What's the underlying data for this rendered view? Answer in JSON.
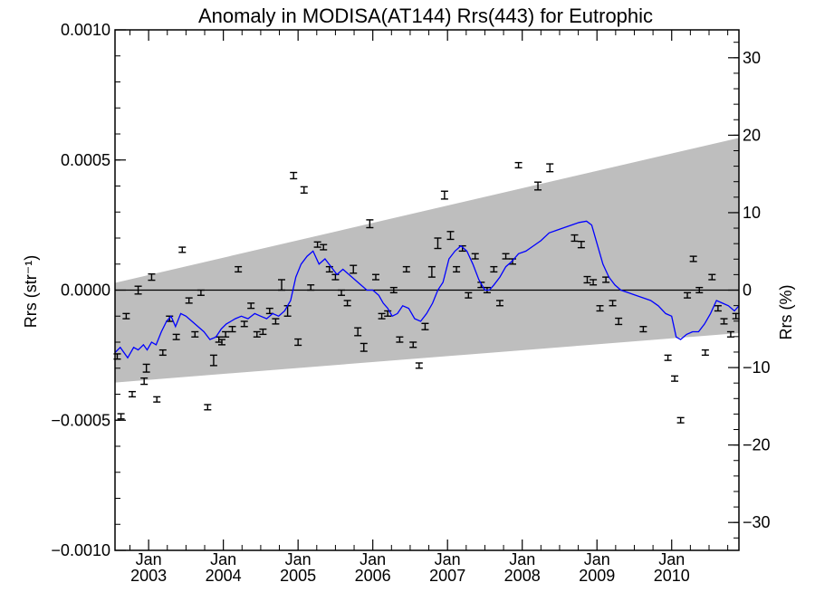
{
  "chart_data": {
    "type": "scatter",
    "title": "Anomaly in MODISA(AT144) Rrs(443) for Eutrophic",
    "ylabel_left": "Rrs (str⁻¹)",
    "ylabel_right": "Rrs (%)",
    "xlabel": "",
    "xlim": [
      2002.55,
      2010.9
    ],
    "ylim_left": [
      -0.001,
      0.001
    ],
    "ylim_right": [
      -33.6,
      33.6
    ],
    "left_ticks": [
      "0.0010",
      "0.0005",
      "0.0000",
      "−0.0005",
      "−0.0010"
    ],
    "left_tick_values": [
      0.001,
      0.0005,
      0.0,
      -0.0005,
      -0.001
    ],
    "right_ticks": [
      "30",
      "20",
      "10",
      "0",
      "−10",
      "−20",
      "−30"
    ],
    "right_tick_values": [
      30,
      20,
      10,
      0,
      -10,
      -20,
      -30
    ],
    "x_tick_month": "Jan",
    "x_tick_years": [
      "2003",
      "2004",
      "2005",
      "2006",
      "2007",
      "2008",
      "2009",
      "2010"
    ],
    "x_tick_values": [
      2003,
      2004,
      2005,
      2006,
      2007,
      2008,
      2009,
      2010
    ],
    "grid": false,
    "legend": "none",
    "zero_line": 0.0,
    "band": {
      "x": [
        2002.55,
        2010.9
      ],
      "upper": [
        2.8e-05,
        0.000585
      ],
      "lower": [
        -0.000355,
        -0.000165
      ],
      "color": "#bebebe"
    },
    "series": [
      {
        "type": "errorbar",
        "color": "#000000",
        "x": [
          2002.58,
          2002.63,
          2002.7,
          2002.78,
          2002.86,
          2002.94,
          2002.97,
          2003.04,
          2003.11,
          2003.19,
          2003.28,
          2003.37,
          2003.45,
          2003.54,
          2003.62,
          2003.7,
          2003.79,
          2003.87,
          2003.94,
          2003.98,
          2004.03,
          2004.12,
          2004.2,
          2004.28,
          2004.37,
          2004.45,
          2004.53,
          2004.62,
          2004.7,
          2004.78,
          2004.86,
          2004.94,
          2005.0,
          2005.08,
          2005.17,
          2005.26,
          2005.34,
          2005.42,
          2005.5,
          2005.58,
          2005.66,
          2005.74,
          2005.8,
          2005.88,
          2005.96,
          2006.04,
          2006.12,
          2006.2,
          2006.28,
          2006.36,
          2006.45,
          2006.54,
          2006.62,
          2006.7,
          2006.79,
          2006.87,
          2006.96,
          2007.04,
          2007.12,
          2007.2,
          2007.28,
          2007.37,
          2007.45,
          2007.53,
          2007.62,
          2007.7,
          2007.78,
          2007.87,
          2007.95,
          2008.21,
          2008.37,
          2008.7,
          2008.79,
          2008.87,
          2008.95,
          2009.04,
          2009.12,
          2009.21,
          2009.29,
          2009.62,
          2009.95,
          2010.04,
          2010.12,
          2010.21,
          2010.29,
          2010.37,
          2010.45,
          2010.54,
          2010.62,
          2010.7,
          2010.79,
          2010.86
        ],
        "y": [
          -0.000255,
          -0.000485,
          -0.0001,
          -0.0004,
          0.0,
          -0.00035,
          -0.0003,
          5e-05,
          -0.00042,
          -0.00024,
          -0.00011,
          -0.00018,
          0.000155,
          -4e-05,
          -0.00017,
          -1e-05,
          -0.00045,
          -0.00027,
          -0.00019,
          -0.0002,
          -0.00017,
          -0.00015,
          8e-05,
          -0.00013,
          -6e-05,
          -0.00017,
          -0.00016,
          -8e-05,
          -0.00012,
          2e-05,
          -8e-05,
          0.00044,
          -0.0002,
          0.000385,
          1e-05,
          0.000175,
          0.000165,
          8e-05,
          5e-05,
          -1e-05,
          -5e-05,
          8e-05,
          -0.00016,
          -0.00022,
          0.000255,
          5e-05,
          -0.0001,
          -9e-05,
          0.0,
          -0.00019,
          8e-05,
          -0.00021,
          -0.00029,
          -0.00014,
          7e-05,
          0.00018,
          0.000365,
          0.00021,
          8e-05,
          0.00016,
          -2e-05,
          0.00013,
          2e-05,
          0.0,
          8e-05,
          -5e-05,
          0.00013,
          0.00011,
          0.00048,
          0.0004,
          0.00047,
          0.0002,
          0.000175,
          4e-05,
          3e-05,
          -7e-05,
          4e-05,
          -5e-05,
          -0.00012,
          -0.00015,
          -0.00026,
          -0.00034,
          -0.0005,
          -2e-05,
          0.00012,
          0.0,
          -0.00024,
          5e-05,
          -7e-05,
          -0.00012,
          -0.00017,
          -0.0001
        ],
        "err": [
          1e-05,
          1e-05,
          1e-05,
          1e-05,
          1.5e-05,
          1.2e-05,
          1.5e-05,
          1.2e-05,
          1e-05,
          1e-05,
          1e-05,
          1e-05,
          1e-05,
          1e-05,
          1e-05,
          1e-05,
          1e-05,
          2e-05,
          1e-05,
          1e-05,
          1e-05,
          1e-05,
          1e-05,
          1e-05,
          1e-05,
          1e-05,
          1e-05,
          1e-05,
          1e-05,
          2e-05,
          2e-05,
          1.2e-05,
          1.2e-05,
          1.2e-05,
          1e-05,
          1e-05,
          1e-05,
          1e-05,
          1e-05,
          1e-05,
          1e-05,
          1.5e-05,
          1.5e-05,
          1.5e-05,
          1.5e-05,
          1e-05,
          1e-05,
          1e-05,
          1e-05,
          1e-05,
          1e-05,
          1e-05,
          1e-05,
          1.2e-05,
          2e-05,
          2e-05,
          1.5e-05,
          1.5e-05,
          1e-05,
          1e-05,
          1e-05,
          1e-05,
          1e-05,
          1e-05,
          1e-05,
          1e-05,
          1e-05,
          1e-05,
          1e-05,
          1.5e-05,
          1.5e-05,
          1.2e-05,
          1.2e-05,
          1.2e-05,
          1e-05,
          1e-05,
          1e-05,
          1e-05,
          1.2e-05,
          1e-05,
          1e-05,
          1e-05,
          1e-05,
          1e-05,
          1e-05,
          1e-05,
          1e-05,
          1e-05,
          1e-05,
          1e-05,
          1e-05,
          1e-05
        ]
      },
      {
        "type": "line",
        "color": "#0000ff",
        "x": [
          2002.55,
          2002.62,
          2002.72,
          2002.8,
          2002.86,
          2002.93,
          2002.98,
          2003.04,
          2003.1,
          2003.17,
          2003.24,
          2003.3,
          2003.36,
          2003.43,
          2003.5,
          2003.58,
          2003.66,
          2003.74,
          2003.82,
          2003.9,
          2003.97,
          2004.04,
          2004.1,
          2004.16,
          2004.24,
          2004.33,
          2004.42,
          2004.5,
          2004.58,
          2004.66,
          2004.74,
          2004.82,
          2004.9,
          2004.97,
          2005.04,
          2005.12,
          2005.2,
          2005.28,
          2005.36,
          2005.44,
          2005.52,
          2005.6,
          2005.68,
          2005.76,
          2005.84,
          2005.92,
          2006.0,
          2006.08,
          2006.14,
          2006.2,
          2006.26,
          2006.33,
          2006.4,
          2006.48,
          2006.56,
          2006.64,
          2006.72,
          2006.8,
          2006.87,
          2006.94,
          2007.02,
          2007.1,
          2007.18,
          2007.26,
          2007.34,
          2007.42,
          2007.5,
          2007.56,
          2007.62,
          2007.7,
          2007.78,
          2007.86,
          2007.95,
          2008.05,
          2008.15,
          2008.25,
          2008.36,
          2008.46,
          2008.56,
          2008.66,
          2008.76,
          2008.86,
          2008.93,
          2009.0,
          2009.08,
          2009.16,
          2009.24,
          2009.32,
          2009.42,
          2009.52,
          2009.62,
          2009.72,
          2009.82,
          2009.92,
          2010.0,
          2010.06,
          2010.12,
          2010.2,
          2010.28,
          2010.36,
          2010.44,
          2010.52,
          2010.6,
          2010.68,
          2010.76,
          2010.84,
          2010.9
        ],
        "y": [
          -0.00024,
          -0.00022,
          -0.00026,
          -0.00022,
          -0.00023,
          -0.00021,
          -0.00023,
          -0.0002,
          -0.00021,
          -0.00016,
          -0.00012,
          -0.0001,
          -0.00014,
          -9e-05,
          -0.0001,
          -0.00012,
          -0.00014,
          -0.00016,
          -0.00019,
          -0.00018,
          -0.00015,
          -0.00013,
          -0.00012,
          -0.00011,
          -0.0001,
          -0.00011,
          -9e-05,
          -0.0001,
          -0.00011,
          -9e-05,
          -0.0001,
          -8e-05,
          -4e-05,
          5e-05,
          0.0001,
          0.00013,
          0.00015,
          0.0001,
          0.00012,
          9e-05,
          6e-05,
          8e-05,
          6e-05,
          4e-05,
          2e-05,
          0.0,
          0.0,
          -2e-05,
          -5e-05,
          -7e-05,
          -0.0001,
          -9e-05,
          -6e-05,
          -7e-05,
          -0.00011,
          -0.00012,
          -9e-05,
          -5e-05,
          0.0,
          3e-05,
          0.00012,
          0.00015,
          0.00017,
          0.00015,
          0.0001,
          4e-05,
          0.0,
          0.0,
          2e-05,
          5e-05,
          9e-05,
          0.00011,
          0.00014,
          0.00015,
          0.00017,
          0.00019,
          0.00022,
          0.00023,
          0.00024,
          0.00025,
          0.00026,
          0.000265,
          0.00025,
          0.00018,
          0.0001,
          5e-05,
          2e-05,
          0.0,
          -1e-05,
          -2e-05,
          -3e-05,
          -4e-05,
          -6e-05,
          -9e-05,
          -0.0001,
          -0.00018,
          -0.00019,
          -0.00017,
          -0.00016,
          -0.00016,
          -0.00013,
          -9e-05,
          -4e-05,
          -5e-05,
          -6e-05,
          -8e-05,
          -6e-05
        ]
      }
    ]
  }
}
